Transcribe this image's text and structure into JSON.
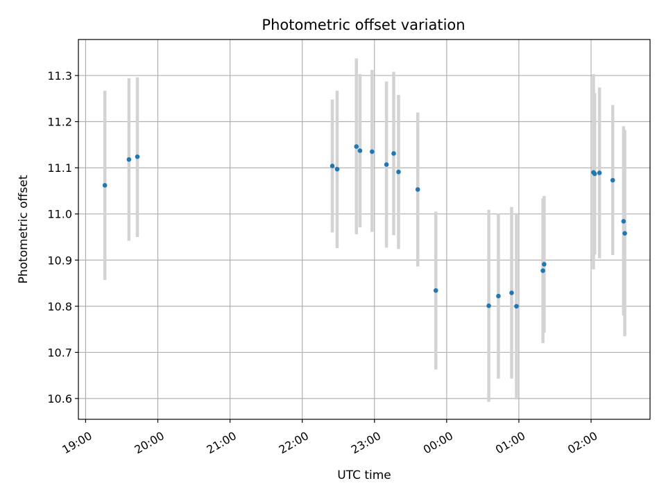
{
  "chart_data": {
    "type": "scatter",
    "title": "Photometric offset variation",
    "xlabel": "UTC time",
    "ylabel": "Photometric offset",
    "x_unit": "UTC time (HH:MM, night starting 19:00)",
    "xlim": [
      "18:54",
      "02:49"
    ],
    "ylim": [
      10.555,
      11.378
    ],
    "x_ticks": [
      {
        "t": "19:00",
        "label": "19:00"
      },
      {
        "t": "20:00",
        "label": "20:00"
      },
      {
        "t": "21:00",
        "label": "21:00"
      },
      {
        "t": "22:00",
        "label": "22:00"
      },
      {
        "t": "23:00",
        "label": "23:00"
      },
      {
        "t": "00:00",
        "label": "00:00"
      },
      {
        "t": "01:00",
        "label": "01:00"
      },
      {
        "t": "02:00",
        "label": "02:00"
      }
    ],
    "y_ticks": [
      10.6,
      10.7,
      10.8,
      10.9,
      11.0,
      11.1,
      11.2,
      11.3
    ],
    "y_tick_labels": [
      "10.6",
      "10.7",
      "10.8",
      "10.9",
      "11.0",
      "11.1",
      "11.2",
      "11.3"
    ],
    "grid": true,
    "colors": {
      "point": "#1f77b4",
      "errorbar": "#d3d3d3",
      "grid": "#b0b0b0"
    },
    "points": [
      {
        "t": "19:16",
        "y": 11.062,
        "lo": 10.857,
        "hi": 11.267
      },
      {
        "t": "19:36",
        "y": 11.118,
        "lo": 10.942,
        "hi": 11.294
      },
      {
        "t": "19:43",
        "y": 11.124,
        "lo": 10.95,
        "hi": 11.296
      },
      {
        "t": "22:25",
        "y": 11.104,
        "lo": 10.96,
        "hi": 11.248
      },
      {
        "t": "22:29",
        "y": 11.097,
        "lo": 10.926,
        "hi": 11.267
      },
      {
        "t": "22:45",
        "y": 11.146,
        "lo": 10.956,
        "hi": 11.337
      },
      {
        "t": "22:48",
        "y": 11.137,
        "lo": 10.971,
        "hi": 11.303
      },
      {
        "t": "22:58",
        "y": 11.135,
        "lo": 10.961,
        "hi": 11.312
      },
      {
        "t": "23:10",
        "y": 11.107,
        "lo": 10.927,
        "hi": 11.287
      },
      {
        "t": "23:16",
        "y": 11.131,
        "lo": 10.954,
        "hi": 11.308
      },
      {
        "t": "23:20",
        "y": 11.091,
        "lo": 10.924,
        "hi": 11.258
      },
      {
        "t": "23:36",
        "y": 11.053,
        "lo": 10.886,
        "hi": 11.22
      },
      {
        "t": "23:51",
        "y": 10.834,
        "lo": 10.663,
        "hi": 11.005
      },
      {
        "t": "00:35",
        "y": 10.801,
        "lo": 10.593,
        "hi": 11.009
      },
      {
        "t": "00:43",
        "y": 10.822,
        "lo": 10.643,
        "hi": 11.001
      },
      {
        "t": "00:54",
        "y": 10.829,
        "lo": 10.643,
        "hi": 11.015
      },
      {
        "t": "00:58",
        "y": 10.8,
        "lo": 10.598,
        "hi": 11.002
      },
      {
        "t": "01:20",
        "y": 10.877,
        "lo": 10.72,
        "hi": 11.034
      },
      {
        "t": "01:21",
        "y": 10.891,
        "lo": 10.743,
        "hi": 11.039
      },
      {
        "t": "02:02",
        "y": 11.09,
        "lo": 10.88,
        "hi": 11.303
      },
      {
        "t": "02:03",
        "y": 11.087,
        "lo": 10.912,
        "hi": 11.262
      },
      {
        "t": "02:07",
        "y": 11.089,
        "lo": 10.904,
        "hi": 11.274
      },
      {
        "t": "02:18",
        "y": 11.073,
        "lo": 10.911,
        "hi": 11.236
      },
      {
        "t": "02:27",
        "y": 10.984,
        "lo": 10.78,
        "hi": 11.19
      },
      {
        "t": "02:28",
        "y": 10.958,
        "lo": 10.735,
        "hi": 11.182
      }
    ]
  }
}
